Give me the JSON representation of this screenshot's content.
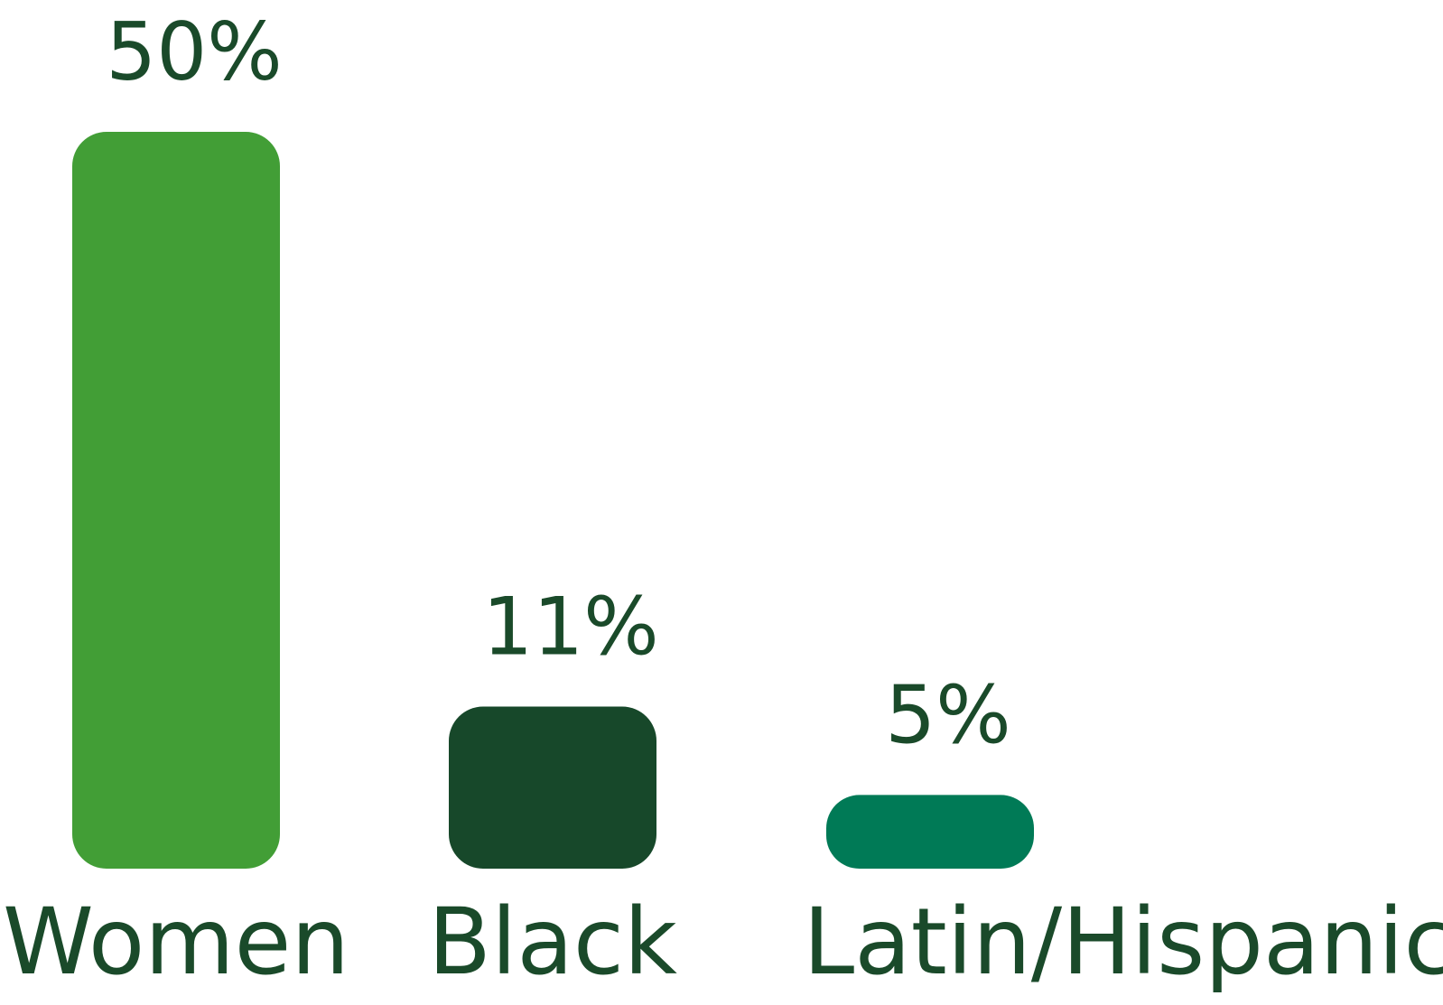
{
  "chart_data": {
    "type": "bar",
    "categories": [
      "Women",
      "Black",
      "Latin/Hispanic"
    ],
    "values": [
      50,
      11,
      5
    ],
    "data_labels": [
      "50%",
      "11%",
      "5%"
    ],
    "colors": [
      "#429e36",
      "#17482a",
      "#007a56"
    ],
    "label_color": "#1a4a2a",
    "title": "",
    "xlabel": "",
    "ylabel": "",
    "ylim": [
      0,
      50
    ],
    "grid": false,
    "legend": "none"
  }
}
